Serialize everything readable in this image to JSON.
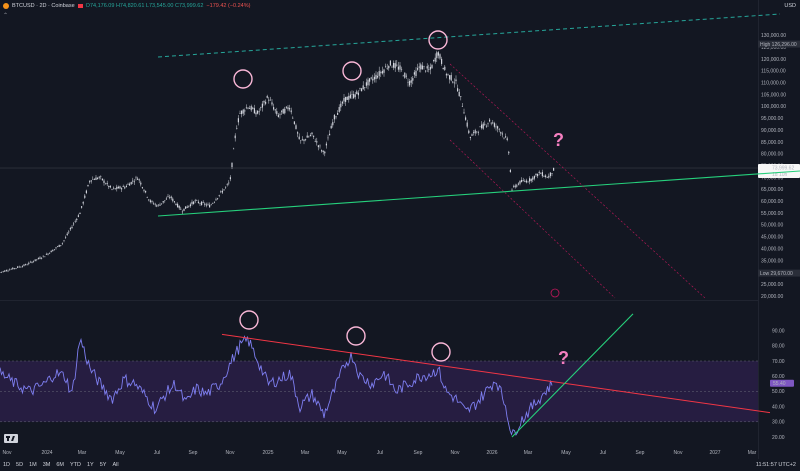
{
  "header": {
    "symbol": "BTCUSD · 2D · Coinbase",
    "ohlc": "O74,176.09 H74,820.61 L73,545.00 C73,999.62",
    "change": "−179.42 (−0.24%)",
    "currency": "USD",
    "collapse_icon": "chevron-up-icon"
  },
  "price_axis": {
    "ticks": [
      "130,000.00",
      "125,000.00",
      "120,000.00",
      "115,000.00",
      "110,000.00",
      "105,000.00",
      "100,000.00",
      "95,000.00",
      "90,000.00",
      "85,000.00",
      "80,000.00",
      "75,000.00",
      "70,000.00",
      "65,000.00",
      "60,000.00",
      "55,000.00",
      "50,000.00",
      "45,000.00",
      "40,000.00",
      "35,000.00",
      "30,000.00",
      "25,000.00",
      "20,000.00"
    ],
    "high_label": "High",
    "high_value": "126,296.00",
    "low_label": "Low",
    "low_value": "29,670.00",
    "last_price": "73,999.62",
    "countdown": "1d 10h"
  },
  "rsi_axis": {
    "ticks": [
      "90.00",
      "80.00",
      "70.00",
      "60.00",
      "50.00",
      "40.00",
      "30.00",
      "20.00"
    ],
    "current": "55.40"
  },
  "time_axis": [
    "Nov",
    "2024",
    "Mar",
    "May",
    "Jul",
    "Sep",
    "Nov",
    "2025",
    "Mar",
    "May",
    "Jul",
    "Sep",
    "Nov",
    "2026",
    "Mar",
    "May",
    "Jul",
    "Sep",
    "Nov",
    "2027",
    "Mar"
  ],
  "bottom_bar": {
    "timeframes": [
      "1D",
      "5D",
      "1M",
      "3M",
      "6M",
      "YTD",
      "1Y",
      "5Y",
      "All"
    ],
    "clock": "11:51:57 UTC+2"
  },
  "annotations": {
    "question_mark": "?"
  },
  "colors": {
    "background": "#131722",
    "candles": "#d1d4dc",
    "support_line": "#26d07c",
    "resistance_dashed": "#26a69a",
    "rsi_line": "#7e7ef0",
    "rsi_band": "#2a1f46",
    "trend_red": "#f23645",
    "circle": "#f8b6d6",
    "question": "#f57fc0"
  },
  "chart_data": [
    {
      "type": "line",
      "title": "BTCUSD · 2D · Coinbase",
      "xlabel": "",
      "ylabel": "USD",
      "ylim": [
        20000,
        135000
      ],
      "x": [
        "Nov",
        "2024",
        "Mar",
        "May",
        "Jul",
        "Sep",
        "Nov",
        "2025",
        "Mar",
        "May",
        "Jul",
        "Sep",
        "Nov",
        "2026",
        "Mar",
        "May"
      ],
      "series": [
        {
          "name": "BTCUSD",
          "values": [
            34000,
            42000,
            68000,
            65000,
            58000,
            60000,
            90000,
            97000,
            84000,
            104000,
            118000,
            112000,
            95000,
            88000,
            68000,
            74000
          ]
        }
      ],
      "annotations": [
        "?"
      ],
      "grid": false
    },
    {
      "type": "line",
      "title": "",
      "ylim": [
        15,
        95
      ],
      "x": [
        "Nov",
        "2024",
        "Mar",
        "May",
        "Jul",
        "Sep",
        "Nov",
        "2025",
        "Mar",
        "May",
        "Jul",
        "Sep",
        "Nov",
        "2026",
        "Mar",
        "May"
      ],
      "series": [
        {
          "name": "RSI",
          "values": [
            72,
            58,
            80,
            62,
            40,
            48,
            82,
            60,
            52,
            78,
            62,
            74,
            50,
            38,
            25,
            55
          ]
        }
      ],
      "bands": [
        30,
        70
      ],
      "annotations": [
        "?"
      ]
    }
  ]
}
